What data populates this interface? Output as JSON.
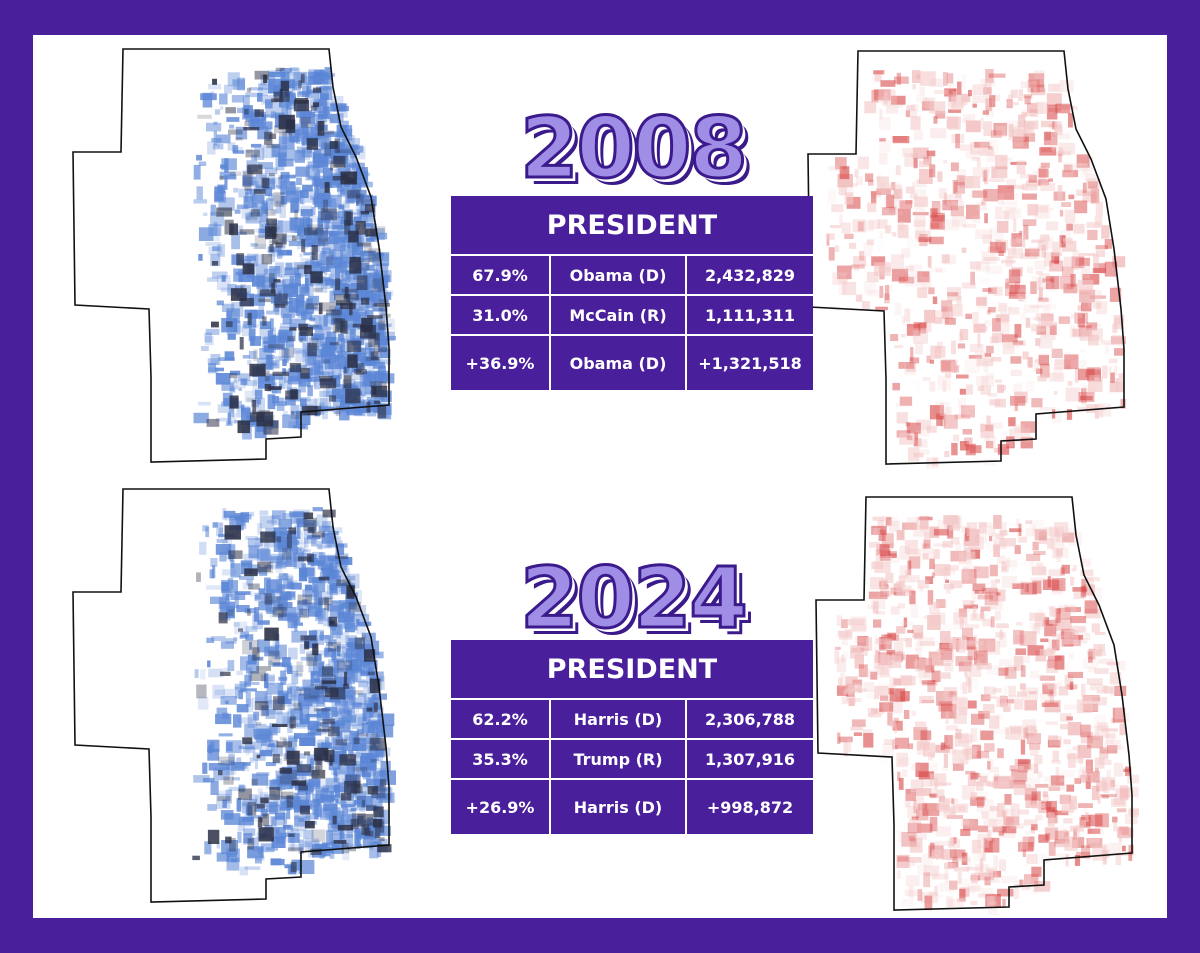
{
  "colors": {
    "frame": "#4a1f9c",
    "democrat_map": "#5b86d6",
    "republican_map": "#d94a4a",
    "year_fill": "#a08ee6",
    "year_outline": "#3b1a8c"
  },
  "panels": [
    {
      "year": "2008",
      "header": "PRESIDENT",
      "rows": [
        {
          "pct": "67.9%",
          "candidate": "Obama (D)",
          "votes": "2,432,829"
        },
        {
          "pct": "31.0%",
          "candidate": "McCain (R)",
          "votes": "1,111,311"
        },
        {
          "pct": "+36.9%",
          "candidate": "Obama (D)",
          "votes": "+1,321,518"
        }
      ]
    },
    {
      "year": "2024",
      "header": "PRESIDENT",
      "rows": [
        {
          "pct": "62.2%",
          "candidate": "Harris (D)",
          "votes": "2,306,788"
        },
        {
          "pct": "35.3%",
          "candidate": "Trump (R)",
          "votes": "1,307,916"
        },
        {
          "pct": "+26.9%",
          "candidate": "Harris (D)",
          "votes": "+998,872"
        }
      ]
    }
  ]
}
